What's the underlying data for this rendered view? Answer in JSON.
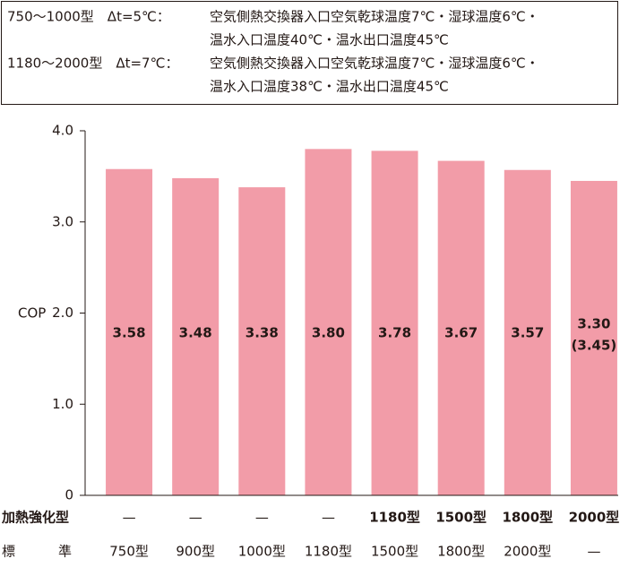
{
  "chart_data": {
    "type": "bar",
    "notes": [
      {
        "condition": "750～1000型　Δt=5℃：",
        "lines": [
          "空気側熱交換器入口空気乾球温度7℃・湿球温度6℃・",
          "温水入口温度40℃・温水出口温度45℃"
        ]
      },
      {
        "condition": "1180～2000型　Δt=7℃：",
        "lines": [
          "空気側熱交換器入口空気乾球温度7℃・湿球温度6℃・",
          "温水入口温度38℃・温水出口温度45℃"
        ]
      }
    ],
    "y_label": "COP",
    "ylim": [
      0,
      4
    ],
    "yticks": [
      0,
      {
        "value": 1,
        "label": "1.0"
      },
      {
        "value": 2,
        "label": "2.0"
      },
      {
        "value": 3,
        "label": "3.0"
      },
      {
        "value": 4,
        "label": "4.0"
      }
    ],
    "values": [
      3.58,
      3.48,
      3.38,
      3.8,
      3.78,
      3.67,
      3.57,
      3.45
    ],
    "value_labels": [
      "3.58",
      "3.48",
      "3.38",
      "3.80",
      "3.78",
      "3.67",
      "3.57",
      [
        "3.30",
        "(3.45)"
      ]
    ],
    "color": "#f29ca8",
    "highlight_color": "#c0001f",
    "category_rows": [
      {
        "name": "加熱強化型",
        "labels": [
          "—",
          "—",
          "—",
          "—",
          "1180型",
          "1500型",
          "1800型",
          "2000型"
        ]
      },
      {
        "name": "標準",
        "labels": [
          "750型",
          "900型",
          "1000型",
          "1180型",
          "1500型",
          "1800型",
          "2000型",
          "—"
        ]
      }
    ]
  }
}
